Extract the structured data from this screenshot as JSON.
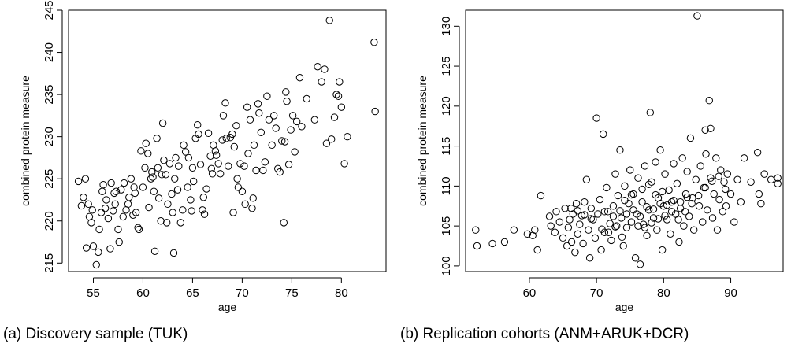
{
  "chart_data": [
    {
      "type": "scatter",
      "caption": "(a) Discovery sample (TUK)",
      "xlabel": "age",
      "ylabel": "combined protein measure",
      "xlim": [
        52.5,
        84.5
      ],
      "ylim": [
        214,
        245
      ],
      "xticks": [
        55,
        60,
        65,
        70,
        75,
        80
      ],
      "yticks": [
        215,
        220,
        225,
        230,
        235,
        240,
        245
      ],
      "grid": false,
      "points": [
        [
          53.5,
          224.7
        ],
        [
          53.8,
          221.8
        ],
        [
          54.0,
          222.8
        ],
        [
          54.2,
          225.0
        ],
        [
          54.5,
          222.0
        ],
        [
          54.6,
          220.5
        ],
        [
          54.8,
          219.8
        ],
        [
          54.3,
          216.8
        ],
        [
          55.0,
          217.0
        ],
        [
          55.3,
          214.8
        ],
        [
          55.5,
          216.3
        ],
        [
          55.6,
          219.0
        ],
        [
          55.8,
          221.0
        ],
        [
          55.9,
          223.5
        ],
        [
          56.0,
          224.3
        ],
        [
          56.2,
          221.5
        ],
        [
          56.3,
          222.5
        ],
        [
          56.5,
          220.3
        ],
        [
          56.7,
          216.7
        ],
        [
          56.8,
          224.5
        ],
        [
          57.0,
          221.2
        ],
        [
          57.2,
          222.0
        ],
        [
          57.3,
          223.5
        ],
        [
          57.5,
          219.0
        ],
        [
          57.6,
          217.5
        ],
        [
          57.8,
          223.7
        ],
        [
          58.0,
          220.5
        ],
        [
          58.1,
          224.5
        ],
        [
          58.3,
          221.3
        ],
        [
          58.5,
          222.0
        ],
        [
          58.6,
          222.8
        ],
        [
          58.8,
          225.0
        ],
        [
          59.0,
          220.7
        ],
        [
          59.2,
          223.3
        ],
        [
          59.3,
          221.0
        ],
        [
          59.5,
          219.2
        ],
        [
          59.6,
          219.0
        ],
        [
          59.8,
          228.3
        ],
        [
          60.0,
          224.0
        ],
        [
          60.2,
          226.3
        ],
        [
          60.3,
          229.2
        ],
        [
          60.5,
          228.0
        ],
        [
          60.6,
          221.6
        ],
        [
          60.8,
          225.0
        ],
        [
          61.0,
          225.2
        ],
        [
          61.1,
          223.5
        ],
        [
          61.2,
          216.4
        ],
        [
          61.4,
          229.8
        ],
        [
          61.5,
          226.3
        ],
        [
          61.6,
          222.7
        ],
        [
          61.8,
          220.0
        ],
        [
          62.0,
          231.6
        ],
        [
          62.1,
          227.2
        ],
        [
          62.3,
          225.5
        ],
        [
          62.4,
          219.8
        ],
        [
          62.5,
          222.0
        ],
        [
          62.7,
          226.8
        ],
        [
          62.9,
          223.2
        ],
        [
          63.0,
          221.0
        ],
        [
          63.1,
          216.2
        ],
        [
          63.2,
          225.0
        ],
        [
          63.3,
          227.5
        ],
        [
          63.5,
          223.7
        ],
        [
          63.6,
          226.5
        ],
        [
          63.8,
          219.8
        ],
        [
          64.0,
          221.3
        ],
        [
          64.1,
          229.0
        ],
        [
          64.3,
          228.2
        ],
        [
          64.5,
          224.0
        ],
        [
          64.6,
          227.5
        ],
        [
          64.8,
          222.5
        ],
        [
          65.0,
          226.3
        ],
        [
          65.1,
          224.7
        ],
        [
          65.3,
          229.8
        ],
        [
          65.5,
          231.4
        ],
        [
          65.6,
          230.3
        ],
        [
          65.8,
          226.7
        ],
        [
          66.0,
          221.3
        ],
        [
          66.1,
          222.8
        ],
        [
          66.2,
          220.8
        ],
        [
          66.4,
          223.8
        ],
        [
          66.6,
          230.4
        ],
        [
          66.8,
          227.7
        ],
        [
          67.0,
          225.6
        ],
        [
          67.1,
          229.0
        ],
        [
          67.3,
          228.3
        ],
        [
          67.4,
          227.8
        ],
        [
          67.6,
          226.8
        ],
        [
          67.8,
          225.6
        ],
        [
          68.0,
          229.6
        ],
        [
          68.1,
          232.5
        ],
        [
          68.3,
          234.0
        ],
        [
          68.4,
          229.8
        ],
        [
          68.6,
          226.5
        ],
        [
          68.8,
          229.9
        ],
        [
          69.0,
          230.3
        ],
        [
          69.1,
          221.0
        ],
        [
          69.2,
          228.8
        ],
        [
          69.4,
          231.3
        ],
        [
          69.5,
          225.0
        ],
        [
          69.6,
          224.0
        ],
        [
          69.8,
          226.8
        ],
        [
          70.0,
          223.5
        ],
        [
          70.2,
          226.5
        ],
        [
          70.3,
          222.0
        ],
        [
          70.5,
          233.5
        ],
        [
          70.6,
          228.0
        ],
        [
          70.8,
          232.0
        ],
        [
          71.0,
          221.5
        ],
        [
          71.1,
          222.7
        ],
        [
          71.2,
          229.0
        ],
        [
          71.4,
          226.0
        ],
        [
          71.6,
          233.9
        ],
        [
          71.7,
          232.8
        ],
        [
          71.9,
          230.5
        ],
        [
          72.1,
          226.0
        ],
        [
          72.3,
          227.0
        ],
        [
          72.5,
          234.8
        ],
        [
          72.7,
          232.0
        ],
        [
          73.0,
          229.0
        ],
        [
          73.2,
          232.5
        ],
        [
          73.4,
          231.0
        ],
        [
          73.6,
          226.2
        ],
        [
          73.8,
          225.8
        ],
        [
          74.0,
          229.5
        ],
        [
          74.2,
          219.8
        ],
        [
          74.3,
          229.4
        ],
        [
          74.4,
          235.3
        ],
        [
          74.5,
          234.2
        ],
        [
          74.7,
          226.7
        ],
        [
          74.9,
          230.8
        ],
        [
          75.1,
          232.5
        ],
        [
          75.3,
          228.2
        ],
        [
          75.5,
          231.8
        ],
        [
          75.8,
          237.0
        ],
        [
          76.0,
          231.2
        ],
        [
          76.5,
          234.5
        ],
        [
          77.3,
          232.0
        ],
        [
          77.6,
          238.3
        ],
        [
          78.0,
          236.5
        ],
        [
          78.3,
          238.0
        ],
        [
          78.5,
          229.2
        ],
        [
          78.8,
          243.8
        ],
        [
          79.0,
          229.7
        ],
        [
          79.3,
          232.3
        ],
        [
          79.5,
          235.0
        ],
        [
          79.7,
          234.8
        ],
        [
          79.8,
          236.5
        ],
        [
          80.0,
          233.5
        ],
        [
          80.3,
          226.8
        ],
        [
          80.6,
          230.0
        ],
        [
          83.3,
          241.2
        ],
        [
          83.4,
          233.0
        ],
        [
          54.9,
          221.3
        ],
        [
          57.1,
          223.3
        ],
        [
          61.9,
          225.5
        ],
        [
          64.9,
          221.2
        ],
        [
          66.9,
          226.2
        ],
        [
          60.9,
          225.8
        ],
        [
          59.1,
          224.0
        ]
      ]
    },
    {
      "type": "scatter",
      "caption": "(b) Replication cohorts (ANM+ARUK+DCR)",
      "xlabel": "age",
      "ylabel": "combined protein measure",
      "xlim": [
        50.5,
        97.8
      ],
      "ylim": [
        99.3,
        132
      ],
      "xticks": [
        60,
        70,
        80,
        90
      ],
      "yticks": [
        100,
        105,
        110,
        115,
        120,
        125,
        130
      ],
      "grid": false,
      "points": [
        [
          52.0,
          104.5
        ],
        [
          52.2,
          102.5
        ],
        [
          54.5,
          102.8
        ],
        [
          56.3,
          103.0
        ],
        [
          57.7,
          104.5
        ],
        [
          59.7,
          104.0
        ],
        [
          60.5,
          103.8
        ],
        [
          60.8,
          104.5
        ],
        [
          61.2,
          102.0
        ],
        [
          61.7,
          108.8
        ],
        [
          63.0,
          106.2
        ],
        [
          63.2,
          105.0
        ],
        [
          63.8,
          104.2
        ],
        [
          64.0,
          106.8
        ],
        [
          64.5,
          105.5
        ],
        [
          65.0,
          103.5
        ],
        [
          65.3,
          107.2
        ],
        [
          65.6,
          102.5
        ],
        [
          65.8,
          104.8
        ],
        [
          66.0,
          105.8
        ],
        [
          66.3,
          103.0
        ],
        [
          66.5,
          106.5
        ],
        [
          66.8,
          101.7
        ],
        [
          67.0,
          107.8
        ],
        [
          67.2,
          104.0
        ],
        [
          67.5,
          105.2
        ],
        [
          67.8,
          106.3
        ],
        [
          68.0,
          102.8
        ],
        [
          68.2,
          108.0
        ],
        [
          68.5,
          110.8
        ],
        [
          68.8,
          104.5
        ],
        [
          69.0,
          101.0
        ],
        [
          69.2,
          107.2
        ],
        [
          69.5,
          105.8
        ],
        [
          69.8,
          103.5
        ],
        [
          70.0,
          118.5
        ],
        [
          70.2,
          106.5
        ],
        [
          70.5,
          108.3
        ],
        [
          70.7,
          102.0
        ],
        [
          71.0,
          116.5
        ],
        [
          71.2,
          104.2
        ],
        [
          71.5,
          109.8
        ],
        [
          71.7,
          106.8
        ],
        [
          72.0,
          105.3
        ],
        [
          72.2,
          103.2
        ],
        [
          72.5,
          107.5
        ],
        [
          72.8,
          111.5
        ],
        [
          73.0,
          105.0
        ],
        [
          73.2,
          108.8
        ],
        [
          73.5,
          114.5
        ],
        [
          73.7,
          106.0
        ],
        [
          74.0,
          102.5
        ],
        [
          74.2,
          110.0
        ],
        [
          74.5,
          104.8
        ],
        [
          74.8,
          107.8
        ],
        [
          75.0,
          112.0
        ],
        [
          75.2,
          105.5
        ],
        [
          75.5,
          109.0
        ],
        [
          75.8,
          101.0
        ],
        [
          76.0,
          106.5
        ],
        [
          76.2,
          111.0
        ],
        [
          76.5,
          100.2
        ],
        [
          76.8,
          108.0
        ],
        [
          77.0,
          105.2
        ],
        [
          77.2,
          112.5
        ],
        [
          77.5,
          103.8
        ],
        [
          77.8,
          107.0
        ],
        [
          78.0,
          119.2
        ],
        [
          78.2,
          110.5
        ],
        [
          78.5,
          106.0
        ],
        [
          78.8,
          113.0
        ],
        [
          79.0,
          104.5
        ],
        [
          79.2,
          108.5
        ],
        [
          79.5,
          114.5
        ],
        [
          79.8,
          102.0
        ],
        [
          80.0,
          107.5
        ],
        [
          80.2,
          111.5
        ],
        [
          80.5,
          105.8
        ],
        [
          80.8,
          109.5
        ],
        [
          81.0,
          104.0
        ],
        [
          81.2,
          108.0
        ],
        [
          81.5,
          112.8
        ],
        [
          81.8,
          106.5
        ],
        [
          82.0,
          110.3
        ],
        [
          82.3,
          103.0
        ],
        [
          82.5,
          107.2
        ],
        [
          82.8,
          113.5
        ],
        [
          83.0,
          105.0
        ],
        [
          83.3,
          109.0
        ],
        [
          83.5,
          111.8
        ],
        [
          83.8,
          106.2
        ],
        [
          84.0,
          116.0
        ],
        [
          84.3,
          108.5
        ],
        [
          84.5,
          104.5
        ],
        [
          84.8,
          110.8
        ],
        [
          85.0,
          131.3
        ],
        [
          85.3,
          107.5
        ],
        [
          85.5,
          112.5
        ],
        [
          85.8,
          105.5
        ],
        [
          86.0,
          109.8
        ],
        [
          86.3,
          114.0
        ],
        [
          86.5,
          107.0
        ],
        [
          86.8,
          120.7
        ],
        [
          87.0,
          111.0
        ],
        [
          87.3,
          106.0
        ],
        [
          87.5,
          109.0
        ],
        [
          87.8,
          113.5
        ],
        [
          88.0,
          104.5
        ],
        [
          88.3,
          108.3
        ],
        [
          88.5,
          112.0
        ],
        [
          88.8,
          106.8
        ],
        [
          89.0,
          110.5
        ],
        [
          89.3,
          107.5
        ],
        [
          89.5,
          111.5
        ],
        [
          90.0,
          109.0
        ],
        [
          90.5,
          105.5
        ],
        [
          91.0,
          110.8
        ],
        [
          91.5,
          108.0
        ],
        [
          92.0,
          113.5
        ],
        [
          93.0,
          110.5
        ],
        [
          94.0,
          114.2
        ],
        [
          94.2,
          109.0
        ],
        [
          94.5,
          107.8
        ],
        [
          95.0,
          111.5
        ],
        [
          96.0,
          110.8
        ],
        [
          97.0,
          111.0
        ],
        [
          97.0,
          110.3
        ],
        [
          86.2,
          117.0
        ],
        [
          87.0,
          117.2
        ],
        [
          71.2,
          106.8
        ],
        [
          72.5,
          106.2
        ],
        [
          73.5,
          106.9
        ],
        [
          74.5,
          106.5
        ],
        [
          75.5,
          107.0
        ],
        [
          76.5,
          106.2
        ],
        [
          77.5,
          107.4
        ],
        [
          78.5,
          107.1
        ],
        [
          79.5,
          107.8
        ],
        [
          80.5,
          107.6
        ],
        [
          81.5,
          108.2
        ],
        [
          82.5,
          108.0
        ],
        [
          83.5,
          108.6
        ],
        [
          76.2,
          105.0
        ],
        [
          77.2,
          104.8
        ],
        [
          78.2,
          105.4
        ],
        [
          79.2,
          105.9
        ],
        [
          80.2,
          106.3
        ],
        [
          81.2,
          106.8
        ],
        [
          78.8,
          108.9
        ],
        [
          79.8,
          109.3
        ],
        [
          75.2,
          108.9
        ],
        [
          74.2,
          108.2
        ],
        [
          76.8,
          109.6
        ],
        [
          77.8,
          110.2
        ],
        [
          69.2,
          105.9
        ],
        [
          68.2,
          106.4
        ],
        [
          67.2,
          106.9
        ],
        [
          66.2,
          107.2
        ],
        [
          70.8,
          104.6
        ],
        [
          71.8,
          104.2
        ],
        [
          72.8,
          104.9
        ],
        [
          73.8,
          103.6
        ],
        [
          82.2,
          105.8
        ],
        [
          83.2,
          106.8
        ],
        [
          84.2,
          107.8
        ],
        [
          85.2,
          108.8
        ],
        [
          86.2,
          109.8
        ],
        [
          87.2,
          110.6
        ],
        [
          88.2,
          111.2
        ],
        [
          89.2,
          109.6
        ]
      ]
    }
  ]
}
